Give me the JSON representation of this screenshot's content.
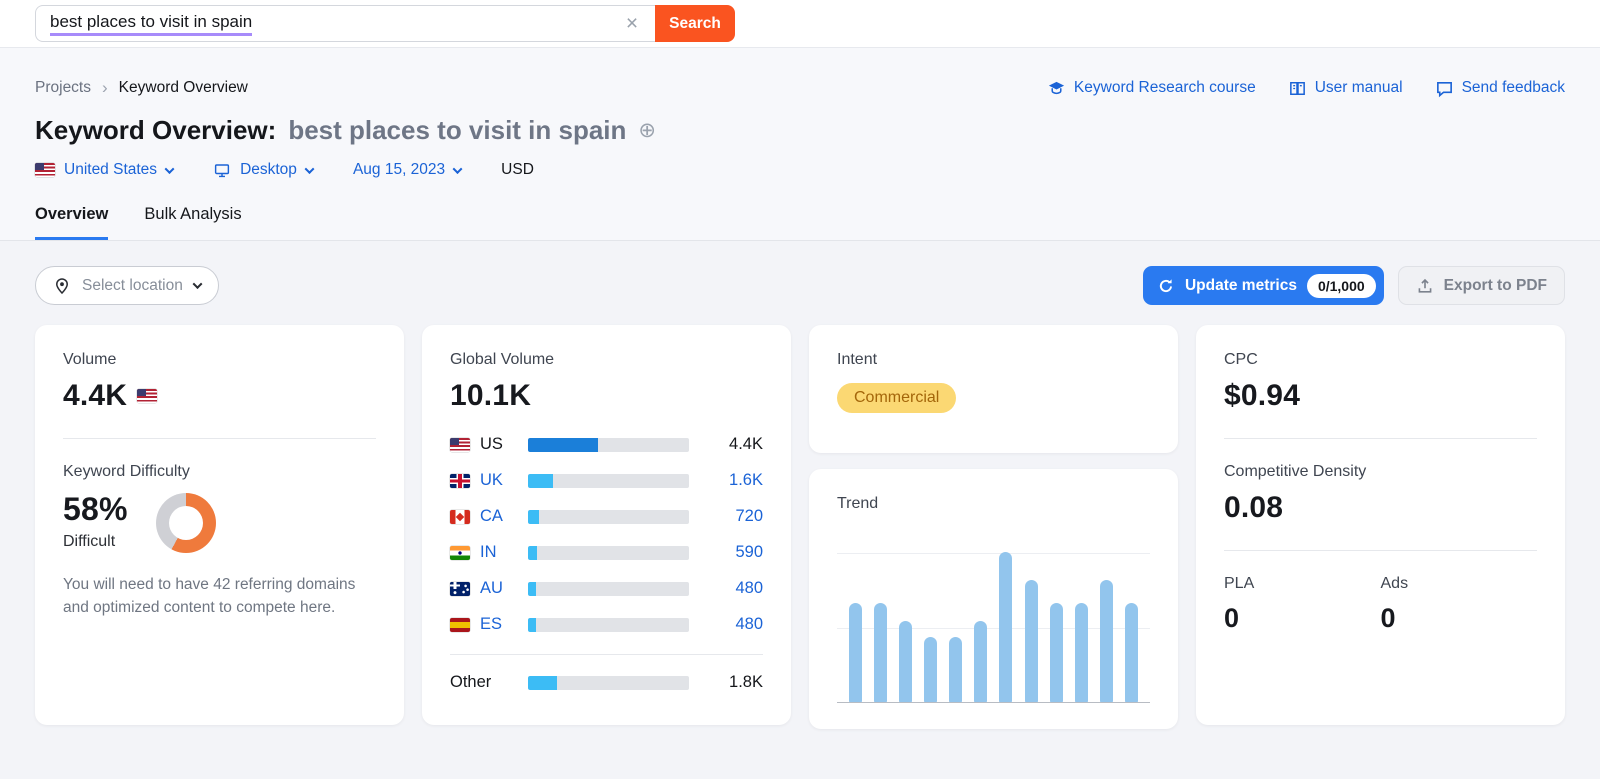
{
  "search": {
    "value": "best places to visit in spain",
    "button": "Search"
  },
  "icons_text": {
    "clear": "×",
    "breadcrumb_separator": "›",
    "add_keyword": "⊕"
  },
  "breadcrumb": {
    "items": [
      "Projects",
      "Keyword Overview"
    ]
  },
  "header_links": [
    {
      "label": "Keyword Research course",
      "icon": "graduation-cap-icon"
    },
    {
      "label": "User manual",
      "icon": "book-icon"
    },
    {
      "label": "Send feedback",
      "icon": "feedback-bubble-icon"
    }
  ],
  "title": {
    "prefix": "Keyword Overview:",
    "keyword": "best places to visit in spain"
  },
  "filters": {
    "country": "United States",
    "device": "Desktop",
    "date": "Aug 15, 2023",
    "currency": "USD"
  },
  "tabs": [
    {
      "label": "Overview",
      "active": true
    },
    {
      "label": "Bulk Analysis",
      "active": false
    }
  ],
  "toolbar": {
    "select_location": "Select location",
    "update_metrics": "Update metrics",
    "quota": "0/1,000",
    "export_pdf": "Export to PDF"
  },
  "cards": {
    "volume": {
      "title": "Volume",
      "value": "4.4K",
      "flag": "us-flag"
    },
    "keyword_difficulty": {
      "title": "Keyword Difficulty",
      "value": "58%",
      "percent": 58,
      "label": "Difficult",
      "description": "You will need to have 42 referring domains and optimized content to compete here."
    },
    "global_volume": {
      "title": "Global Volume",
      "value": "10.1K",
      "total_value": 10100,
      "rows": [
        {
          "code": "US",
          "flag": "us-flag",
          "value": 4400,
          "label": "4.4K",
          "link": false,
          "bar": "primary"
        },
        {
          "code": "UK",
          "flag": "uk-flag",
          "value": 1600,
          "label": "1.6K",
          "link": true,
          "bar": "secondary"
        },
        {
          "code": "CA",
          "flag": "ca-flag",
          "value": 720,
          "label": "720",
          "link": true,
          "bar": "secondary"
        },
        {
          "code": "IN",
          "flag": "in-flag",
          "value": 590,
          "label": "590",
          "link": true,
          "bar": "secondary"
        },
        {
          "code": "AU",
          "flag": "au-flag",
          "value": 480,
          "label": "480",
          "link": true,
          "bar": "secondary"
        },
        {
          "code": "ES",
          "flag": "es-flag",
          "value": 480,
          "label": "480",
          "link": true,
          "bar": "secondary"
        },
        {
          "code": "Other",
          "flag": null,
          "value": 1800,
          "label": "1.8K",
          "link": false,
          "bar": "secondary",
          "divider_before": true
        }
      ]
    },
    "intent": {
      "title": "Intent",
      "badge": "Commercial"
    },
    "trend": {
      "title": "Trend"
    },
    "cpc": {
      "title": "CPC",
      "value": "$0.94"
    },
    "competitive_density": {
      "title": "Competitive Density",
      "value": "0.08"
    },
    "pla": {
      "title": "PLA",
      "value": "0"
    },
    "ads": {
      "title": "Ads",
      "value": "0"
    }
  },
  "chart_data": [
    {
      "type": "bar",
      "title": "Global Volume by country",
      "categories": [
        "US",
        "UK",
        "CA",
        "IN",
        "AU",
        "ES",
        "Other"
      ],
      "values": [
        4400,
        1600,
        720,
        590,
        480,
        480,
        1800
      ],
      "value_labels": [
        "4.4K",
        "1.6K",
        "720",
        "590",
        "480",
        "480",
        "1.8K"
      ],
      "total": 10100,
      "total_label": "10.1K",
      "orientation": "horizontal"
    },
    {
      "type": "bar",
      "title": "Trend",
      "values_percent_of_max": [
        66,
        66,
        54,
        43,
        43,
        54,
        100,
        81,
        66,
        66,
        81,
        66
      ],
      "x_tick_labels": [],
      "y_tick_labels": [],
      "gridlines": [
        "100%",
        "50%"
      ]
    }
  ],
  "colors": {
    "brand_orange": "#fa5420",
    "link_blue": "#1b63d6",
    "button_blue": "#2a7af0",
    "us_bar_blue": "#1b7fd9",
    "country_bar_cyan": "#3cbcf5",
    "trend_bar_blue": "#92c5ed",
    "difficulty_orange": "#ef7a3c",
    "donut_rest_gray": "#cfd0d5",
    "intent_badge_bg": "#fbd873",
    "intent_badge_text": "#a4660a",
    "keyword_underline": "#a78bfa"
  }
}
